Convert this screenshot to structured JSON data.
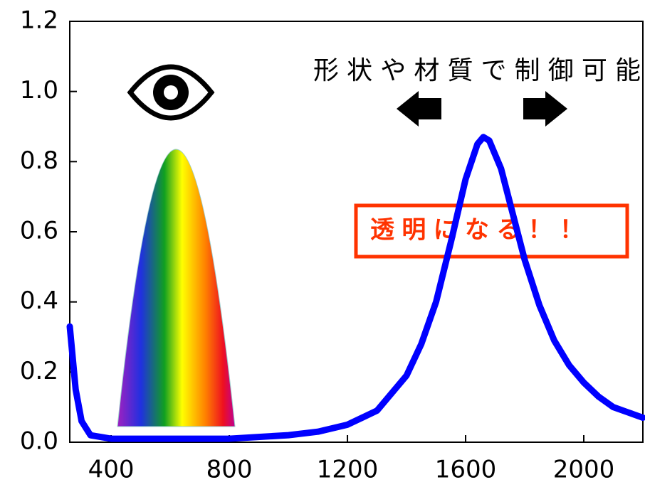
{
  "chart_data": {
    "type": "line",
    "annotations": [
      "形状や材質で制御可能",
      "透明になる！！"
    ],
    "x": [
      260,
      280,
      300,
      330,
      400,
      600,
      800,
      1000,
      1100,
      1200,
      1300,
      1400,
      1450,
      1500,
      1550,
      1600,
      1640,
      1660,
      1680,
      1720,
      1760,
      1800,
      1850,
      1900,
      1950,
      2000,
      2050,
      2100,
      2150,
      2200
    ],
    "series": [
      {
        "color": "#0000ff",
        "values": [
          0.33,
          0.15,
          0.06,
          0.02,
          0.01,
          0.01,
          0.01,
          0.02,
          0.03,
          0.05,
          0.09,
          0.19,
          0.28,
          0.4,
          0.57,
          0.75,
          0.85,
          0.87,
          0.86,
          0.78,
          0.65,
          0.52,
          0.39,
          0.29,
          0.22,
          0.17,
          0.13,
          0.1,
          0.085,
          0.07
        ]
      }
    ],
    "xlim": [
      260,
      2200
    ],
    "ylim": [
      0,
      1.2
    ],
    "xticks": [
      400,
      800,
      1200,
      1600,
      2000
    ],
    "yticks": [
      {
        "value": 0,
        "label": "0.0"
      },
      0.2,
      0.4,
      0.6,
      0.8,
      {
        "value": 1,
        "label": "1.0"
      },
      1.2
    ]
  }
}
